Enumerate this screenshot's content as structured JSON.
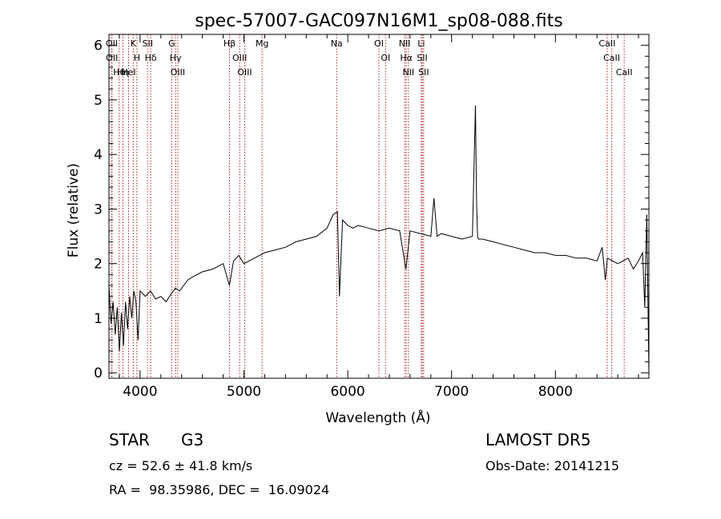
{
  "chart_data": {
    "type": "line",
    "title": "spec-57007-GAC097N16M1_sp08-088.fits",
    "xlabel": "Wavelength (Å)",
    "ylabel": "Flux (relative)",
    "xlim": [
      3700,
      8900
    ],
    "ylim": [
      -0.1,
      6.2
    ],
    "xticks": [
      4000,
      5000,
      6000,
      7000,
      8000
    ],
    "yticks": [
      0,
      1,
      2,
      3,
      4,
      5,
      6
    ],
    "grid": false,
    "series": [
      {
        "color": "#000000",
        "x": [
          3700,
          3720,
          3740,
          3760,
          3780,
          3800,
          3820,
          3840,
          3860,
          3880,
          3900,
          3920,
          3940,
          3960,
          3980,
          4000,
          4050,
          4100,
          4150,
          4200,
          4250,
          4300,
          4340,
          4380,
          4420,
          4460,
          4500,
          4600,
          4700,
          4800,
          4860,
          4900,
          4950,
          5000,
          5100,
          5200,
          5300,
          5400,
          5500,
          5600,
          5700,
          5800,
          5860,
          5900,
          5920,
          5950,
          6000,
          6050,
          6100,
          6200,
          6300,
          6400,
          6500,
          6560,
          6600,
          6700,
          6800,
          6830,
          6860,
          6900,
          7000,
          7100,
          7200,
          7230,
          7240,
          7250,
          7260,
          7300,
          7400,
          7500,
          7600,
          7700,
          7800,
          7900,
          8000,
          8100,
          8200,
          8300,
          8400,
          8450,
          8480,
          8500,
          8550,
          8600,
          8650,
          8700,
          8750,
          8800,
          8840,
          8860,
          8880,
          8900
        ],
        "y": [
          1.6,
          0.9,
          1.3,
          0.7,
          1.2,
          0.4,
          1.1,
          0.5,
          1.3,
          0.8,
          1.4,
          1.0,
          1.5,
          1.3,
          0.6,
          1.5,
          1.4,
          1.5,
          1.35,
          1.4,
          1.3,
          1.45,
          1.55,
          1.5,
          1.6,
          1.7,
          1.75,
          1.85,
          1.9,
          2.0,
          1.6,
          2.05,
          2.15,
          2.0,
          2.1,
          2.2,
          2.25,
          2.3,
          2.4,
          2.45,
          2.5,
          2.65,
          2.9,
          2.95,
          1.4,
          2.8,
          2.7,
          2.65,
          2.7,
          2.65,
          2.6,
          2.65,
          2.6,
          1.9,
          2.6,
          2.55,
          2.5,
          3.2,
          2.5,
          2.55,
          2.5,
          2.45,
          2.5,
          4.9,
          3.2,
          2.5,
          2.45,
          2.45,
          2.4,
          2.35,
          2.3,
          2.25,
          2.2,
          2.2,
          2.15,
          2.15,
          2.1,
          2.1,
          2.05,
          2.3,
          1.7,
          2.1,
          2.05,
          2.0,
          2.05,
          2.1,
          1.9,
          2.05,
          2.2,
          1.2,
          2.9,
          0.0
        ]
      }
    ],
    "lines": [
      {
        "label": "Hθ",
        "x": 3798
      },
      {
        "label": "OII",
        "x": 3727
      },
      {
        "label": "OII",
        "x": 3729
      },
      {
        "label": "Hη",
        "x": 3835
      },
      {
        "label": "K",
        "x": 3934
      },
      {
        "label": "HeI",
        "x": 3889
      },
      {
        "label": "H",
        "x": 3969
      },
      {
        "label": "Hδ",
        "x": 4102
      },
      {
        "label": "SII",
        "x": 4072
      },
      {
        "label": "OIII",
        "x": 4363
      },
      {
        "label": "Hγ",
        "x": 4341
      },
      {
        "label": "G",
        "x": 4305
      },
      {
        "label": "Hβ",
        "x": 4861
      },
      {
        "label": "OIII",
        "x": 4959
      },
      {
        "label": "OIII",
        "x": 5007
      },
      {
        "label": "Mg",
        "x": 5175
      },
      {
        "label": "Na",
        "x": 5893
      },
      {
        "label": "OI",
        "x": 6300
      },
      {
        "label": "OI",
        "x": 6364
      },
      {
        "label": "Hα",
        "x": 6563
      },
      {
        "label": "NII",
        "x": 6548
      },
      {
        "label": "NII",
        "x": 6584
      },
      {
        "label": "SII",
        "x": 6717
      },
      {
        "label": "Li",
        "x": 6708
      },
      {
        "label": "SII",
        "x": 6731
      },
      {
        "label": "CaII",
        "x": 8498
      },
      {
        "label": "CaII",
        "x": 8542
      },
      {
        "label": "CaII",
        "x": 8662
      }
    ]
  },
  "info": {
    "class_label": "STAR",
    "subclass": "G3",
    "survey": "LAMOST DR5",
    "cz": "cz = 52.6 ± 41.8 km/s",
    "obs_date": "Obs-Date: 20141215",
    "coords": "RA =  98.35986, DEC =  16.09024"
  }
}
